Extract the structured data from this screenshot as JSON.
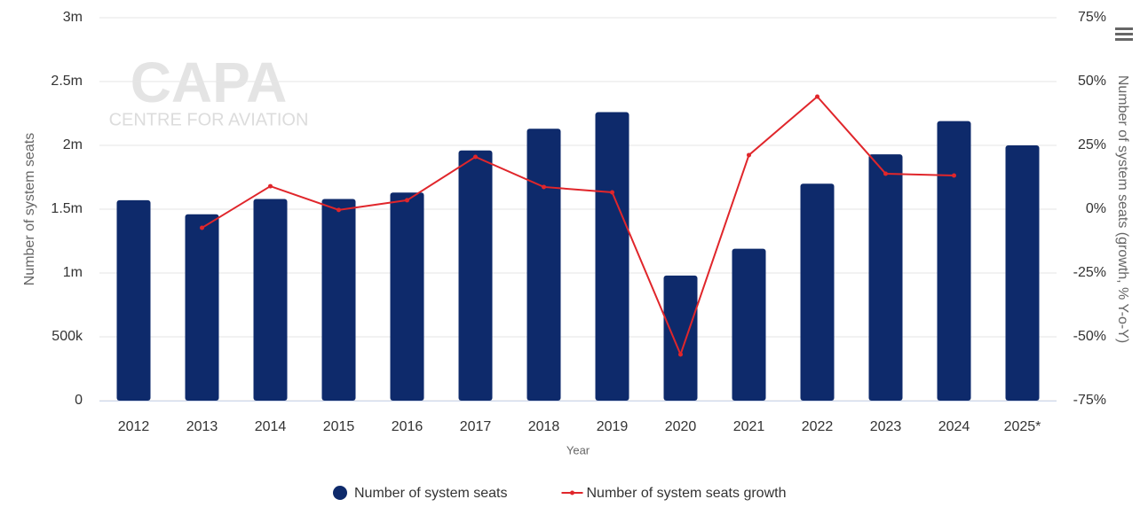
{
  "chart_data": {
    "type": "bar_line",
    "watermark": {
      "title": "CAPA",
      "subtitle": "CENTRE FOR AVIATION"
    },
    "x_label": "Year",
    "y_label": "Number of system seats",
    "y2_label": "Number of system seats (growth, % Y-o-Y)",
    "categories": [
      "2012",
      "2013",
      "2014",
      "2015",
      "2016",
      "2017",
      "2018",
      "2019",
      "2020",
      "2021",
      "2022",
      "2023",
      "2024",
      "2025*"
    ],
    "series": [
      {
        "name": "Number of system seats",
        "type": "bar",
        "color": "#0e2a6b",
        "axis": "y",
        "values": [
          1570000,
          1460000,
          1580000,
          1580000,
          1630000,
          1960000,
          2130000,
          2260000,
          980000,
          1190000,
          1700000,
          1930000,
          2190000,
          2000000
        ]
      },
      {
        "name": "Number of system seats growth",
        "type": "line",
        "color": "#e0262b",
        "axis": "y2",
        "values": [
          null,
          -7.3,
          9.0,
          -0.3,
          3.5,
          20.5,
          8.7,
          6.6,
          -56.9,
          21.2,
          44.1,
          13.9,
          13.2,
          null
        ]
      }
    ],
    "ylim": [
      0,
      3000000
    ],
    "yticks": [
      0,
      {
        "value": 500000,
        "label": "500k"
      },
      {
        "value": 1000000,
        "label": "1m"
      },
      {
        "value": 1500000,
        "label": "1.5m"
      },
      {
        "value": 2000000,
        "label": "2m"
      },
      {
        "value": 2500000,
        "label": "2.5m"
      },
      {
        "value": 3000000,
        "label": "3m"
      }
    ],
    "y2lim": [
      -75,
      75
    ],
    "y2ticks": [
      {
        "value": -75,
        "label": "-75%"
      },
      {
        "value": -50,
        "label": "-50%"
      },
      {
        "value": -25,
        "label": "-25%"
      },
      {
        "value": 0,
        "label": "0%"
      },
      {
        "value": 25,
        "label": "25%"
      },
      {
        "value": 50,
        "label": "50%"
      },
      {
        "value": 75,
        "label": "75%"
      }
    ],
    "grid": true
  }
}
